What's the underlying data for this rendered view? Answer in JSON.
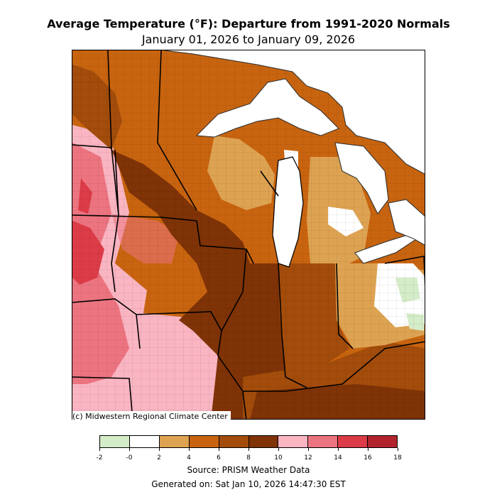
{
  "title": "Average Temperature (°F): Departure from 1991-2020 Normals",
  "subtitle": "January 01, 2026 to January 09, 2026",
  "credit": "(c) Midwestern Regional Climate Center",
  "source": "Source: PRISM Weather Data",
  "generated": "Generated on: Sat Jan 10, 2026 14:47:30 EST",
  "legend": {
    "colors": [
      "#d4ecc8",
      "#ffffff",
      "#dea352",
      "#c8640f",
      "#a34c0b",
      "#7f3306",
      "#fab5c2",
      "#ec7480",
      "#dc3c47",
      "#b2242d"
    ],
    "tick_labels": [
      "-2",
      "-0",
      "2",
      "4",
      "6",
      "8",
      "10",
      "12",
      "14",
      "16",
      "18"
    ]
  },
  "palette": {
    "lake": "#ffffff",
    "boundary": "#000000",
    "county": "#555555"
  }
}
